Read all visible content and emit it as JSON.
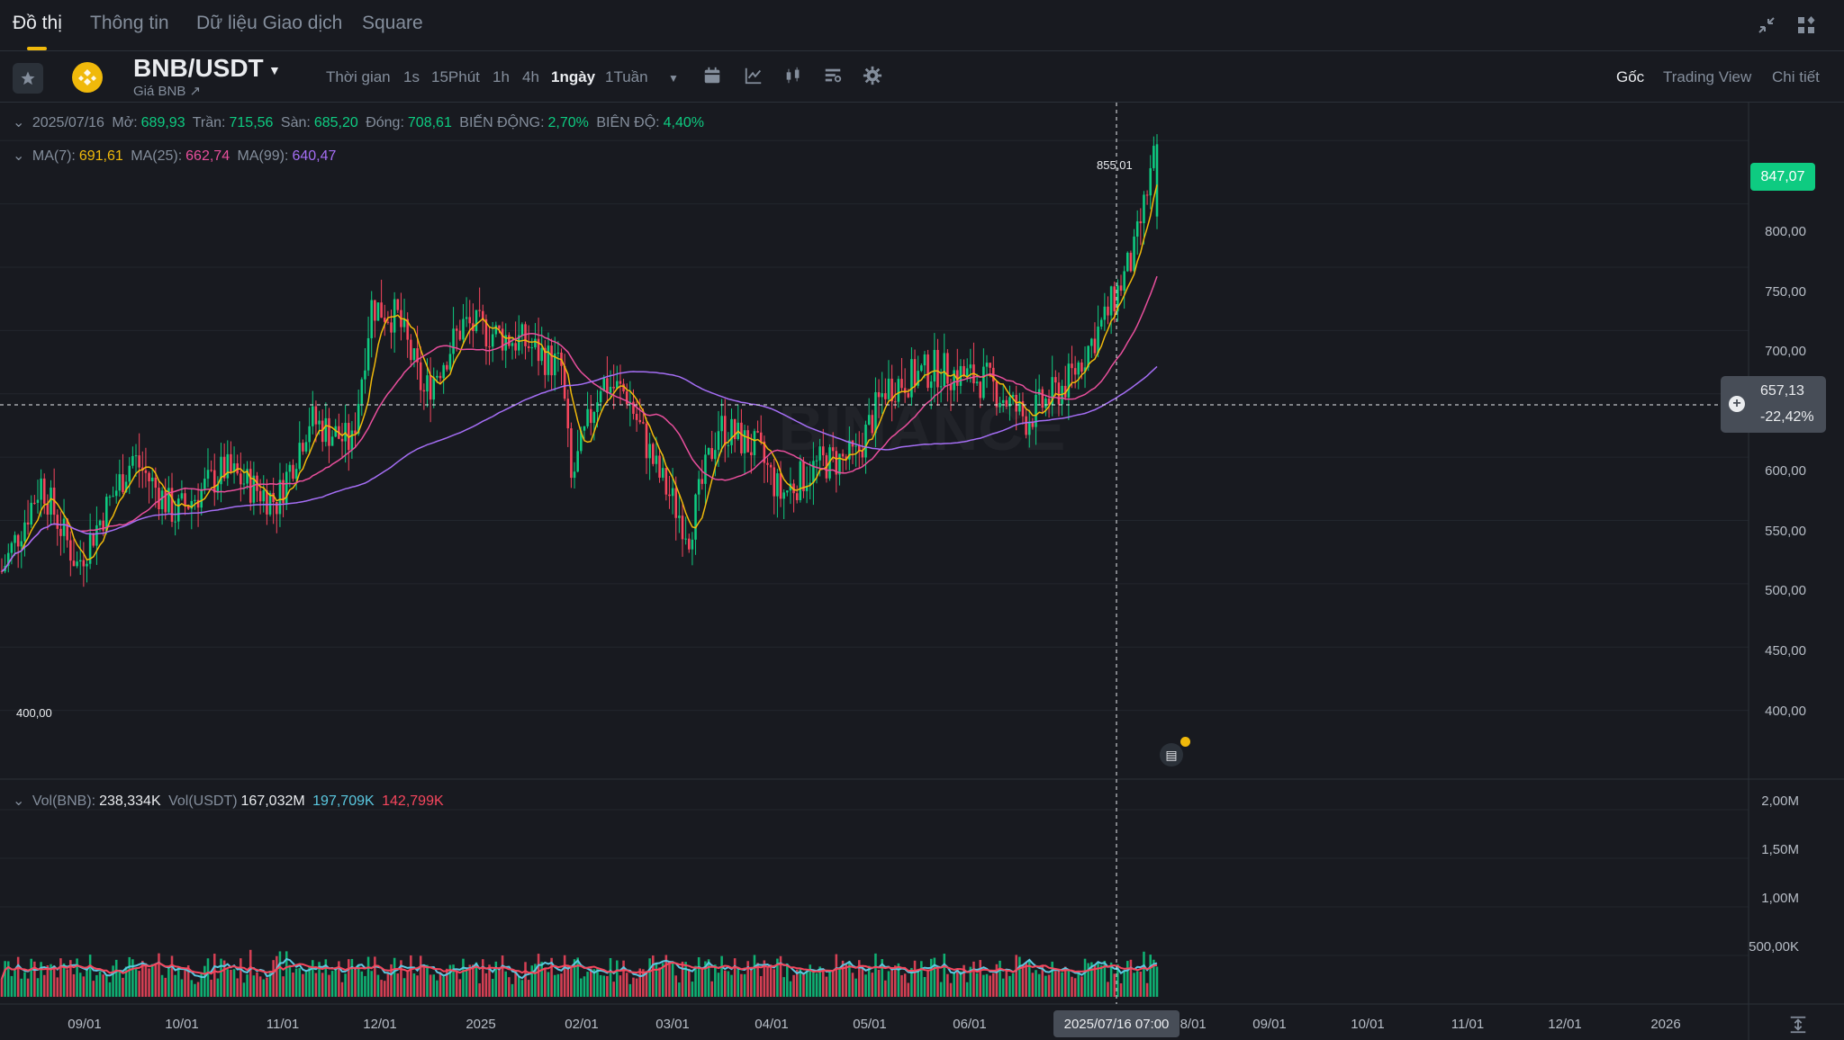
{
  "tabs": [
    "Đồ thị",
    "Thông tin",
    "Dữ liệu Giao dịch",
    "Square"
  ],
  "symbol": {
    "pair": "BNB/USDT",
    "subtitle": "Giá BNB ↗"
  },
  "timeframes": [
    "Thời gian",
    "1s",
    "15Phút",
    "1h",
    "4h",
    "1ngày",
    "1Tuần"
  ],
  "active_timeframe": "1ngày",
  "views": [
    "Gốc",
    "Trading View",
    "Chi tiết"
  ],
  "ohlc": {
    "date": "2025/07/16",
    "open_label": "Mở:",
    "open": "689,93",
    "high_label": "Trần:",
    "high": "715,56",
    "low_label": "Sàn:",
    "low": "685,20",
    "close_label": "Đóng:",
    "close": "708,61",
    "change_label": "BIẾN ĐỘNG:",
    "change": "2,70%",
    "range_label": "BIÊN ĐỘ:",
    "range": "4,40%"
  },
  "ma": {
    "ma7_label": "MA(7):",
    "ma7": "691,61",
    "ma25_label": "MA(25):",
    "ma25": "662,74",
    "ma99_label": "MA(99):",
    "ma99": "640,47"
  },
  "vol": {
    "vol_bnb_label": "Vol(BNB):",
    "vol_bnb": "238,334K",
    "vol_usdt_label": "Vol(USDT)",
    "vol_usdt": "167,032M",
    "ma_a": "197,709K",
    "ma_b": "142,799K"
  },
  "price_axis": [
    "800,00",
    "750,00",
    "700,00",
    "650,00",
    "600,00",
    "550,00",
    "500,00",
    "450,00",
    "400,00"
  ],
  "volume_axis": [
    "2,00M",
    "1,50M",
    "1,00M",
    "500,00K"
  ],
  "time_axis": [
    "09/01",
    "10/01",
    "11/01",
    "12/01",
    "2025",
    "02/01",
    "03/01",
    "04/01",
    "05/01",
    "06/01",
    "08/01",
    "09/01",
    "10/01",
    "11/01",
    "12/01",
    "2026"
  ],
  "last_price": "847,07",
  "max_label": "855,01",
  "min_label": "400,00",
  "crosshair": {
    "price": "657,13",
    "change": "-22,42%",
    "time": "2025/07/16 07:00"
  },
  "colors": {
    "up": "#0ecb81",
    "down": "#f6465d",
    "ma7": "#f0b90b",
    "ma25": "#e84f9c",
    "ma99": "#a56ef5",
    "vol_ma_a": "#5ac8e0",
    "vol_ma_b": "#f6465d"
  },
  "chart_data": {
    "type": "candlestick",
    "x_start": "2024-08-13",
    "x_end": "2025-07-16",
    "ylim": [
      350,
      880
    ],
    "series_ma": [
      {
        "name": "MA(7)",
        "last": 691.61
      },
      {
        "name": "MA(25)",
        "last": 662.74
      },
      {
        "name": "MA(99)",
        "last": 640.47
      }
    ],
    "price_path": [
      {
        "date": "2024-08-13",
        "close": 510
      },
      {
        "date": "2024-08-25",
        "close": 580
      },
      {
        "date": "2024-09-05",
        "close": 515
      },
      {
        "date": "2024-09-22",
        "close": 600
      },
      {
        "date": "2024-10-05",
        "close": 555
      },
      {
        "date": "2024-10-20",
        "close": 590
      },
      {
        "date": "2024-11-05",
        "close": 565
      },
      {
        "date": "2024-11-15",
        "close": 630
      },
      {
        "date": "2024-11-28",
        "close": 610
      },
      {
        "date": "2024-12-04",
        "close": 720
      },
      {
        "date": "2024-12-12",
        "close": 710
      },
      {
        "date": "2024-12-20",
        "close": 650
      },
      {
        "date": "2025-01-01",
        "close": 705
      },
      {
        "date": "2025-01-20",
        "close": 690
      },
      {
        "date": "2025-01-31",
        "close": 670
      },
      {
        "date": "2025-02-03",
        "close": 580
      },
      {
        "date": "2025-02-12",
        "close": 660
      },
      {
        "date": "2025-02-20",
        "close": 650
      },
      {
        "date": "2025-03-01",
        "close": 590
      },
      {
        "date": "2025-03-11",
        "close": 540
      },
      {
        "date": "2025-03-20",
        "close": 625
      },
      {
        "date": "2025-04-01",
        "close": 605
      },
      {
        "date": "2025-04-08",
        "close": 570
      },
      {
        "date": "2025-04-20",
        "close": 595
      },
      {
        "date": "2025-05-01",
        "close": 600
      },
      {
        "date": "2025-05-10",
        "close": 655
      },
      {
        "date": "2025-05-25",
        "close": 670
      },
      {
        "date": "2025-06-10",
        "close": 660
      },
      {
        "date": "2025-06-22",
        "close": 630
      },
      {
        "date": "2025-07-05",
        "close": 660
      },
      {
        "date": "2025-07-16",
        "close": 708.61
      },
      {
        "date": "2025-07-25",
        "close": 760
      },
      {
        "date": "2025-08-01",
        "close": 847.07
      }
    ],
    "volume_ylim": [
      0,
      2100000
    ]
  }
}
